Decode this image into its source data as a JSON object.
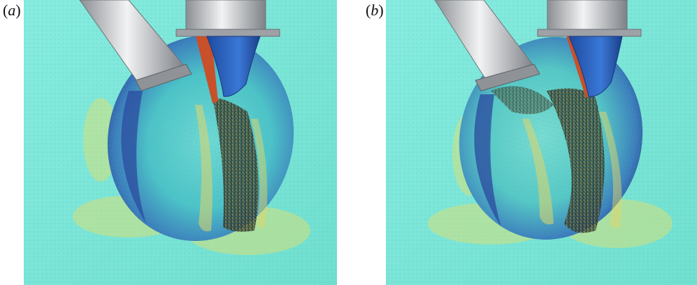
{
  "figure": {
    "panels": [
      {
        "id": "a",
        "label_open": "(",
        "label_letter": "a",
        "label_close": ")"
      },
      {
        "id": "b",
        "label_open": "(",
        "label_letter": "b",
        "label_close": ")"
      }
    ],
    "colors": {
      "background_field": "#7ee8d8",
      "vector_dark": "#1d2a2a",
      "vessel_blue": "#2f5fb0",
      "vessel_cyan": "#63d8d0",
      "jet_orange": "#c8502a",
      "tube_gray": "#bfc3c6"
    }
  }
}
